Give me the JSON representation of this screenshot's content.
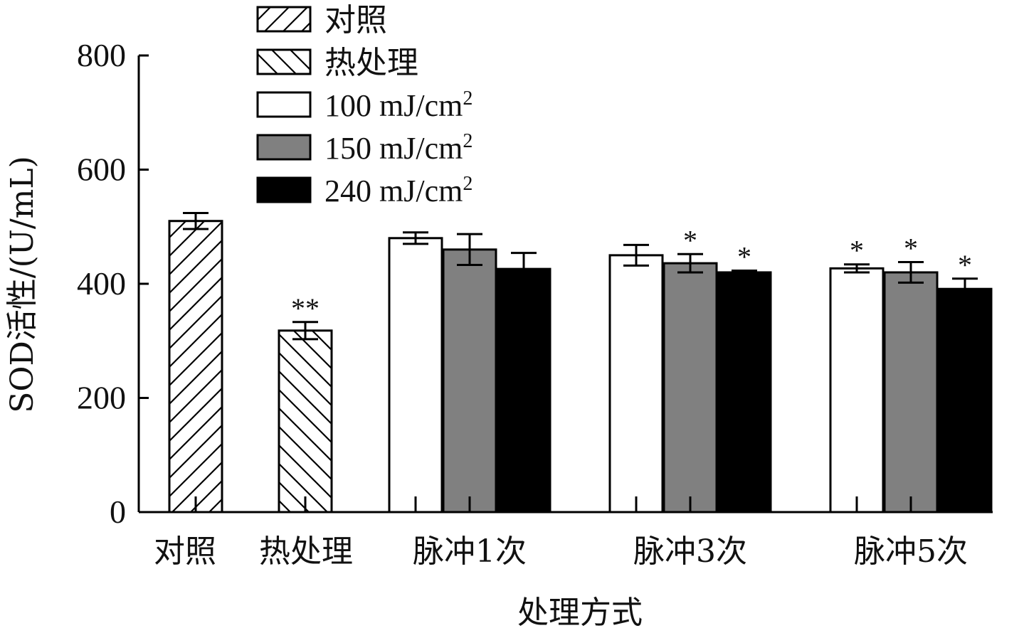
{
  "chart_data": {
    "type": "bar",
    "categories": [
      "对照",
      "热处理",
      "脉冲1次",
      "脉冲3次",
      "脉冲5次"
    ],
    "xlabel": "处理方式",
    "ylabel": "SOD活性/(U/mL)",
    "ylim": [
      0,
      800
    ],
    "yticks": [
      0,
      200,
      400,
      600,
      800
    ],
    "grid": false,
    "legend_position": "top-left",
    "legend": [
      {
        "name": "对照",
        "pattern": "hatch-forward",
        "fill": "#ffffff"
      },
      {
        "name": "热处理",
        "pattern": "hatch-back",
        "fill": "#ffffff"
      },
      {
        "name": "100 mJ/cm",
        "sup": "2",
        "pattern": "solid",
        "fill": "#ffffff"
      },
      {
        "name": "150 mJ/cm",
        "sup": "2",
        "pattern": "solid",
        "fill": "#808080"
      },
      {
        "name": "240 mJ/cm",
        "sup": "2",
        "pattern": "solid",
        "fill": "#000000"
      }
    ],
    "bars": [
      {
        "category": "对照",
        "series": "对照",
        "value": 510,
        "error": 14,
        "sig": ""
      },
      {
        "category": "热处理",
        "series": "热处理",
        "value": 318,
        "error": 15,
        "sig": "**"
      },
      {
        "category": "脉冲1次",
        "series": "100 mJ/cm2",
        "value": 480,
        "error": 10,
        "sig": ""
      },
      {
        "category": "脉冲1次",
        "series": "150 mJ/cm2",
        "value": 460,
        "error": 27,
        "sig": ""
      },
      {
        "category": "脉冲1次",
        "series": "240 mJ/cm2",
        "value": 426,
        "error": 28,
        "sig": ""
      },
      {
        "category": "脉冲3次",
        "series": "100 mJ/cm2",
        "value": 450,
        "error": 18,
        "sig": ""
      },
      {
        "category": "脉冲3次",
        "series": "150 mJ/cm2",
        "value": 436,
        "error": 16,
        "sig": "*"
      },
      {
        "category": "脉冲3次",
        "series": "240 mJ/cm2",
        "value": 420,
        "error": 3,
        "sig": "*"
      },
      {
        "category": "脉冲5次",
        "series": "100 mJ/cm2",
        "value": 427,
        "error": 7,
        "sig": "*"
      },
      {
        "category": "脉冲5次",
        "series": "150 mJ/cm2",
        "value": 420,
        "error": 18,
        "sig": "*"
      },
      {
        "category": "脉冲5次",
        "series": "240 mJ/cm2",
        "value": 391,
        "error": 18,
        "sig": "*"
      }
    ]
  }
}
